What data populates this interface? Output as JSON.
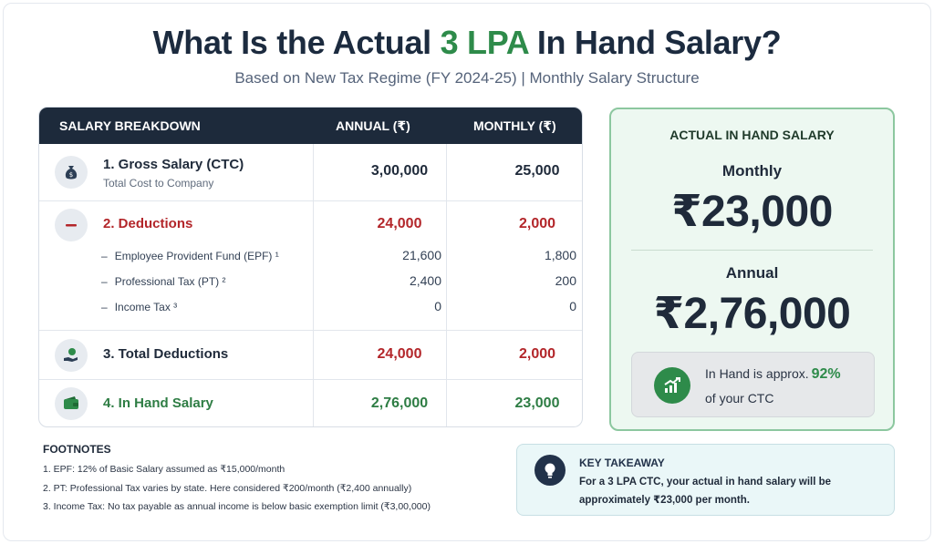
{
  "header": {
    "title_pre": "What Is the Actual",
    "title_accent": "3 LPA",
    "title_post": "In Hand Salary?",
    "subtitle": "Based on New Tax Regime (FY 2024-25) | Monthly Salary Structure"
  },
  "table": {
    "headers": [
      "SALARY BREAKDOWN",
      "ANNUAL (₹)",
      "MONTHLY (₹)"
    ],
    "gross": {
      "label": "1. Gross Salary (CTC)",
      "sub": "Total Cost to Company",
      "annual": "3,00,000",
      "monthly": "25,000"
    },
    "deductions": {
      "label": "2. Deductions",
      "annual": "24,000",
      "monthly": "2,000",
      "items": [
        {
          "dash": "–",
          "label": "Employee Provident Fund (EPF) ¹",
          "annual": "21,600",
          "monthly": "1,800"
        },
        {
          "dash": "–",
          "label": "Professional Tax (PT) ²",
          "annual": "2,400",
          "monthly": "200"
        },
        {
          "dash": "–",
          "label": "Income Tax ³",
          "annual": "0",
          "monthly": "0"
        }
      ]
    },
    "total": {
      "label": "3. Total Deductions",
      "annual": "24,000",
      "monthly": "2,000"
    },
    "inhand": {
      "label": "4. In Hand Salary",
      "annual": "2,76,000",
      "monthly": "23,000"
    }
  },
  "summary": {
    "heading": "ACTUAL IN HAND SALARY",
    "monthly_label": "Monthly",
    "monthly_value": "₹23,000",
    "annual_label": "Annual",
    "annual_value": "₹2,76,000",
    "approx_text": "In Hand is approx.",
    "approx_pct": "92%",
    "approx_suffix": "of your CTC"
  },
  "footnotes": {
    "title": "FOOTNOTES",
    "items": [
      "1. EPF: 12% of Basic Salary assumed as ₹15,000/month",
      "2. PT: Professional Tax varies by state. Here considered ₹200/month (₹2,400 annually)",
      "3. Income Tax: No tax payable as annual income is below basic exemption limit (₹3,00,000)"
    ]
  },
  "takeaway": {
    "title": "KEY TAKEAWAY",
    "text": "For a 3 LPA CTC, your actual in hand salary will be approximately ₹23,000 per month."
  },
  "colors": {
    "accent_green": "#2e8b4a",
    "deduction_red": "#b3262a",
    "header_navy": "#1d2a3b"
  },
  "icons": [
    "money-bag-icon",
    "minus-icon",
    "hand-coin-icon",
    "wallet-icon",
    "chart-up-icon",
    "lightbulb-icon"
  ]
}
